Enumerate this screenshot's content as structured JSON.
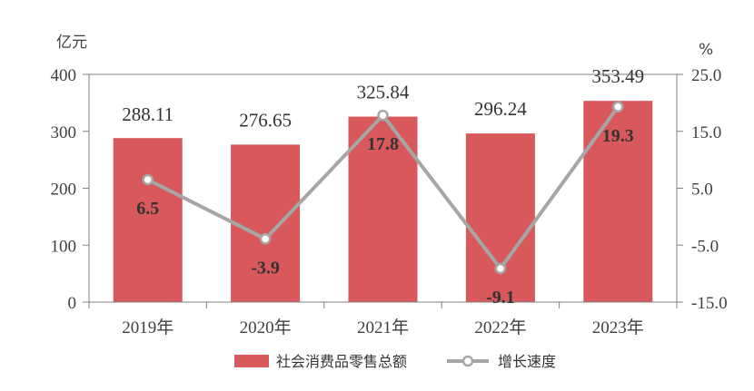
{
  "chart_data": {
    "type": "bar+line",
    "categories": [
      "2019年",
      "2020年",
      "2021年",
      "2022年",
      "2023年"
    ],
    "series": [
      {
        "name": "社会消费品零售总额",
        "type": "bar",
        "axis": "left",
        "values": [
          288.11,
          276.65,
          325.84,
          296.24,
          353.49
        ],
        "labels": [
          "288.11",
          "276.65",
          "325.84",
          "296.24",
          "353.49"
        ],
        "color": "#d9585b"
      },
      {
        "name": "增长速度",
        "type": "line",
        "axis": "right",
        "values": [
          6.5,
          -3.9,
          17.8,
          -9.1,
          19.3
        ],
        "labels": [
          "6.5",
          "-3.9",
          "17.8",
          "-9.1",
          "19.3"
        ],
        "color": "#a6a6a6"
      }
    ],
    "left_axis": {
      "unit": "亿元",
      "ylim": [
        0,
        400
      ],
      "ticks": [
        0,
        100,
        200,
        300,
        400
      ],
      "tick_labels": [
        "0",
        "100",
        "200",
        "300",
        "400"
      ]
    },
    "right_axis": {
      "unit": "%",
      "ylim": [
        -15,
        25
      ],
      "ticks": [
        -15,
        -5,
        5,
        15,
        25
      ],
      "tick_labels": [
        "-15.0",
        "-5.0",
        "5.0",
        "15.0",
        "25.0"
      ]
    },
    "grid": false,
    "legend_position": "bottom"
  }
}
